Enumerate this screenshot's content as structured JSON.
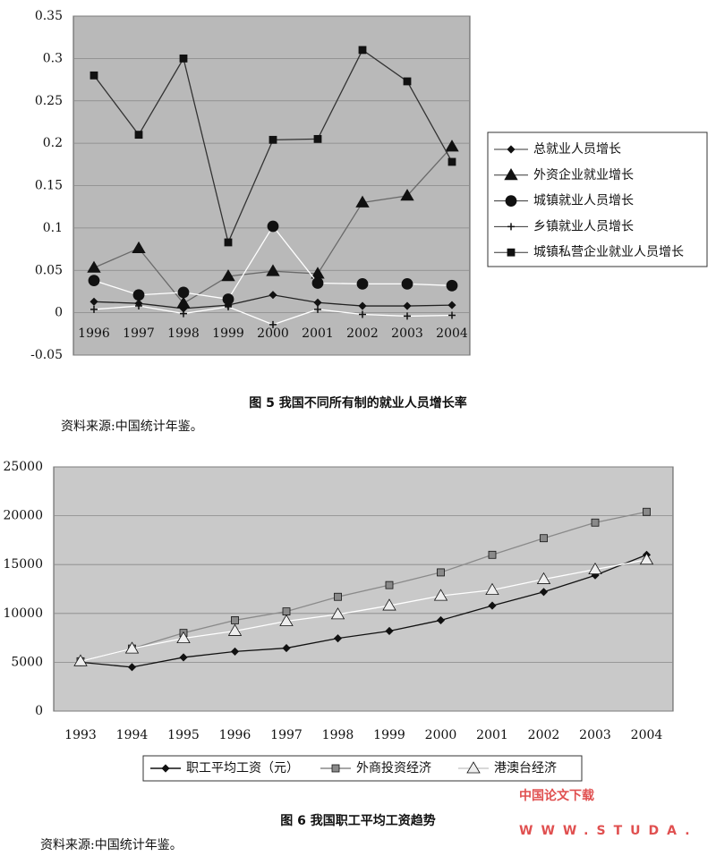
{
  "chart_data": [
    {
      "type": "line",
      "categories": [
        "1996",
        "1997",
        "1998",
        "1999",
        "2000",
        "2001",
        "2002",
        "2003",
        "2004"
      ],
      "series": [
        {
          "name": "总就业人员增长",
          "color": "#111111",
          "line_color": "#222222",
          "marker": "diamond",
          "values": [
            0.013,
            0.011,
            0.005,
            0.009,
            0.021,
            0.012,
            0.008,
            0.008,
            0.009
          ]
        },
        {
          "name": "外资企业就业增长",
          "color": "#111111",
          "line_color": "#6a6a6a",
          "marker": "triangle",
          "values": [
            0.053,
            0.076,
            0.011,
            0.043,
            0.049,
            0.046,
            0.13,
            0.138,
            0.196
          ]
        },
        {
          "name": "城镇就业人员增长",
          "color": "#111111",
          "line_color": "#ffffff",
          "marker": "circle",
          "values": [
            0.038,
            0.021,
            0.024,
            0.016,
            0.102,
            0.035,
            0.034,
            0.034,
            0.032
          ]
        },
        {
          "name": "乡镇就业人员增长",
          "color": "#111111",
          "line_color": "#ffffff",
          "marker": "plus",
          "values": [
            0.004,
            0.008,
            -0.001,
            0.007,
            -0.014,
            0.004,
            -0.002,
            -0.004,
            -0.003
          ]
        },
        {
          "name": "城镇私营企业就业人员增长",
          "color": "#111111",
          "line_color": "#333333",
          "marker": "square",
          "values": [
            0.28,
            0.21,
            0.3,
            0.083,
            0.204,
            0.205,
            0.31,
            0.273,
            0.178
          ]
        }
      ],
      "ylim": [
        -0.05,
        0.35
      ],
      "yticks": [
        -0.05,
        0,
        0.05,
        0.1,
        0.15,
        0.2,
        0.25,
        0.3,
        0.35
      ],
      "grid": true,
      "legend": "right",
      "caption": "图 5   我国不同所有制的就业人员增长率",
      "source": "资料来源:中国统计年鉴。"
    },
    {
      "type": "line",
      "categories": [
        "1993",
        "1994",
        "1995",
        "1996",
        "1997",
        "1998",
        "1999",
        "2000",
        "2001",
        "2002",
        "2003",
        "2004"
      ],
      "series": [
        {
          "name": "职工平均工资（元）",
          "color": "#111111",
          "line_color": "#111111",
          "marker": "diamond",
          "values": [
            5000,
            4500,
            5500,
            6100,
            6450,
            7450,
            8200,
            9300,
            10800,
            12200,
            13900,
            16000
          ]
        },
        {
          "name": "外商投资经济",
          "color": "#8a8a8a",
          "line_color": "#8a8a8a",
          "marker": "square",
          "values": [
            5100,
            6400,
            8000,
            9300,
            10200,
            11700,
            12900,
            14200,
            16000,
            17700,
            19300,
            20400
          ]
        },
        {
          "name": "港澳台经济",
          "color": "#eeeeee",
          "line_color": "#ffffff",
          "marker": "triangle",
          "values": [
            5100,
            6400,
            7450,
            8200,
            9200,
            9900,
            10800,
            11800,
            12400,
            13500,
            14500,
            15500
          ]
        }
      ],
      "ylim": [
        0,
        25000
      ],
      "yticks": [
        0,
        5000,
        10000,
        15000,
        20000,
        25000
      ],
      "grid": true,
      "legend": "bottom",
      "caption": "图 6   我国职工平均工资趋势",
      "source": "资料来源:中国统计年鉴。"
    }
  ],
  "watermark": {
    "title": "中国论文下载",
    "url": "WWW.STUDA."
  }
}
